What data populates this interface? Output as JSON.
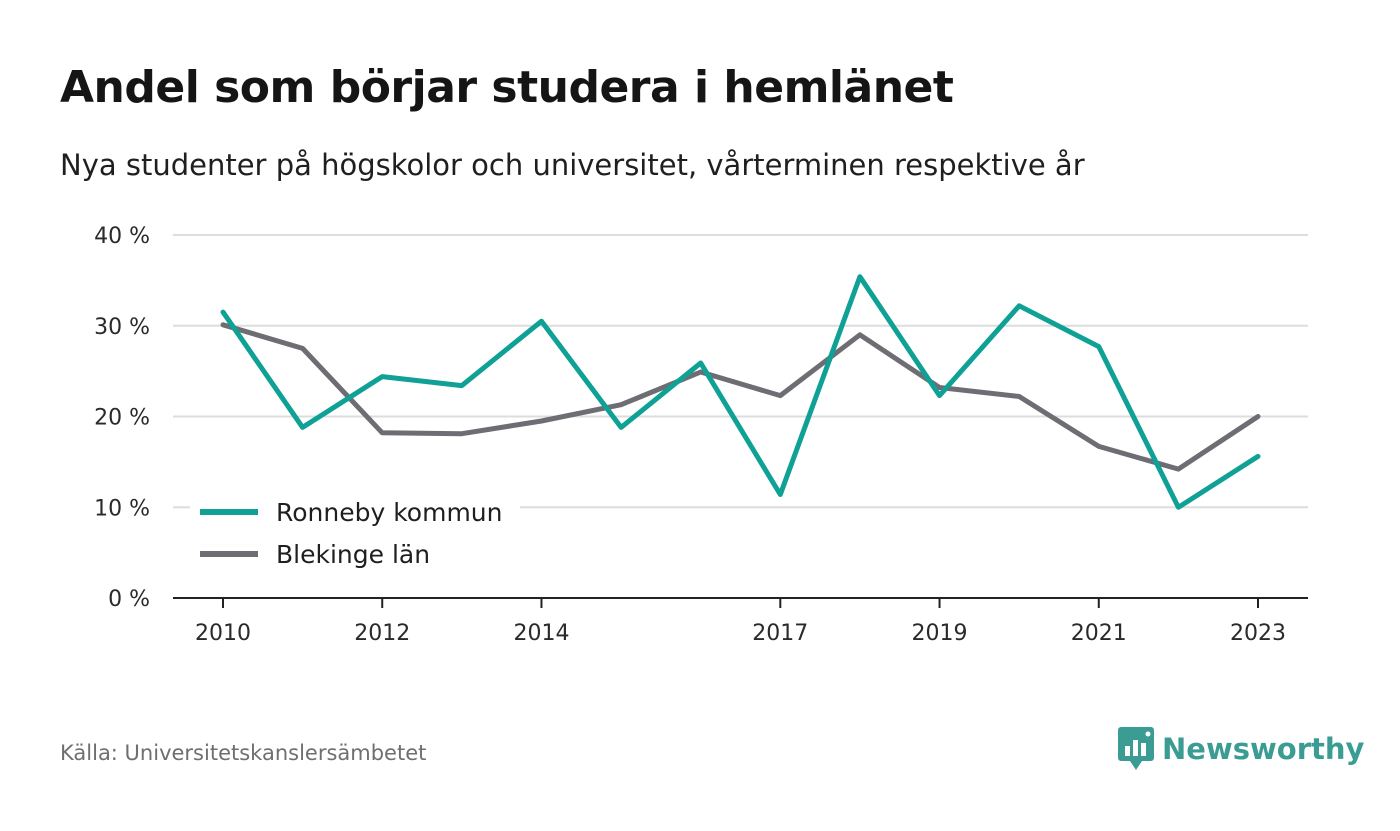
{
  "header": {
    "title": "Andel som börjar studera i hemlänet",
    "subtitle": "Nya studenter på högskolor och universitet, vårterminen respektive år"
  },
  "footer": {
    "source": "Källa: Universitetskanslersämbetet",
    "brand": "Newsworthy"
  },
  "colors": {
    "ronneby": "#0fa195",
    "blekinge": "#6e6d74",
    "grid": "#dddddd",
    "axis": "#222222",
    "brand": "#3a9c93"
  },
  "chart_data": {
    "type": "line",
    "title": "Andel som börjar studera i hemlänet",
    "subtitle": "Nya studenter på högskolor och universitet, vårterminen respektive år",
    "x": [
      2010,
      2011,
      2012,
      2013,
      2014,
      2015,
      2016,
      2017,
      2018,
      2019,
      2020,
      2021,
      2022,
      2023
    ],
    "x_tick_labels": [
      "2010",
      "2012",
      "2014",
      "2017",
      "2019",
      "2021",
      "2023"
    ],
    "y_ticks": [
      0,
      10,
      20,
      30,
      40
    ],
    "y_tick_labels": [
      "0 %",
      "10 %",
      "20 %",
      "30 %",
      "40 %"
    ],
    "ylim": [
      0,
      40
    ],
    "grid": true,
    "legend_position": "bottom-left",
    "series": [
      {
        "name": "Ronneby kommun",
        "color": "#0fa195",
        "values": [
          31.5,
          18.8,
          24.4,
          23.4,
          30.5,
          18.8,
          25.9,
          11.4,
          35.4,
          22.3,
          32.2,
          27.7,
          10.0,
          15.6
        ]
      },
      {
        "name": "Blekinge län",
        "color": "#6e6d74",
        "values": [
          30.1,
          27.5,
          18.2,
          18.1,
          19.5,
          21.3,
          24.9,
          22.3,
          29.0,
          23.2,
          22.2,
          16.7,
          14.2,
          20.0
        ]
      }
    ]
  }
}
